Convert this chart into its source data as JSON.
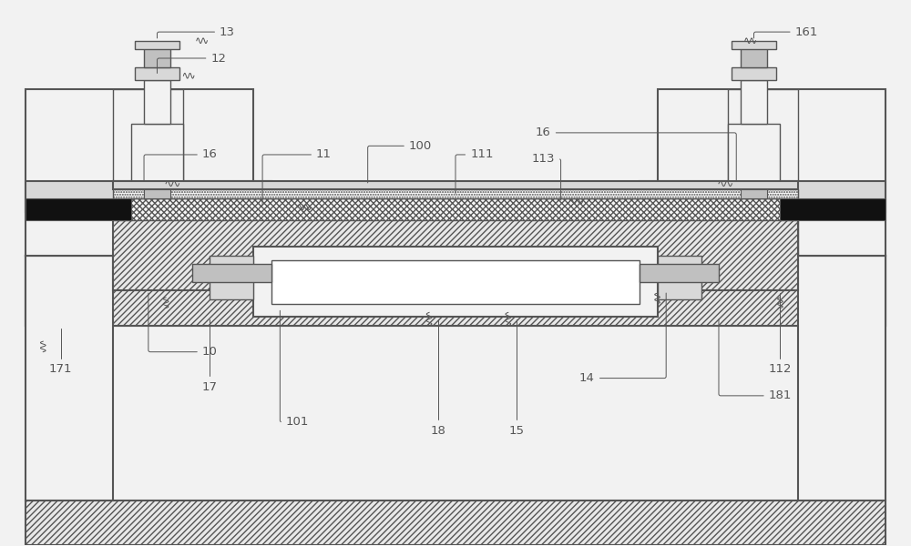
{
  "bg": "#f2f2f2",
  "lc": "#555555",
  "black": "#111111",
  "white": "#ffffff",
  "lgray": "#e8e8e8",
  "mgray": "#d8d8d8",
  "dgray": "#c0c0c0",
  "fs": 9.5
}
